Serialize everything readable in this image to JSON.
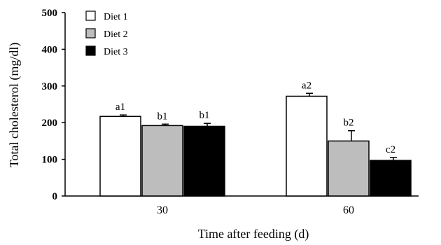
{
  "chart_data": {
    "type": "bar",
    "title": "",
    "xlabel": "Time after feeding (d)",
    "ylabel": "Total cholesterol (mg/dl)",
    "ylim": [
      0,
      500
    ],
    "yticks": [
      "0",
      "100",
      "200",
      "300",
      "400",
      "500"
    ],
    "categories": [
      "30",
      "60"
    ],
    "series": [
      {
        "name": "Diet 1",
        "color": "#ffffff",
        "values": [
          217,
          272
        ],
        "errors": [
          4,
          8
        ],
        "labels": [
          "a1",
          "a2"
        ]
      },
      {
        "name": "Diet 2",
        "color": "#bdbdbd",
        "values": [
          192,
          150
        ],
        "errors": [
          4,
          28
        ],
        "labels": [
          "b1",
          "b2"
        ]
      },
      {
        "name": "Diet 3",
        "color": "#000000",
        "values": [
          190,
          97
        ],
        "errors": [
          8,
          8
        ],
        "labels": [
          "b1",
          "c2"
        ]
      }
    ],
    "legend_position": "top-left",
    "grid": false
  }
}
